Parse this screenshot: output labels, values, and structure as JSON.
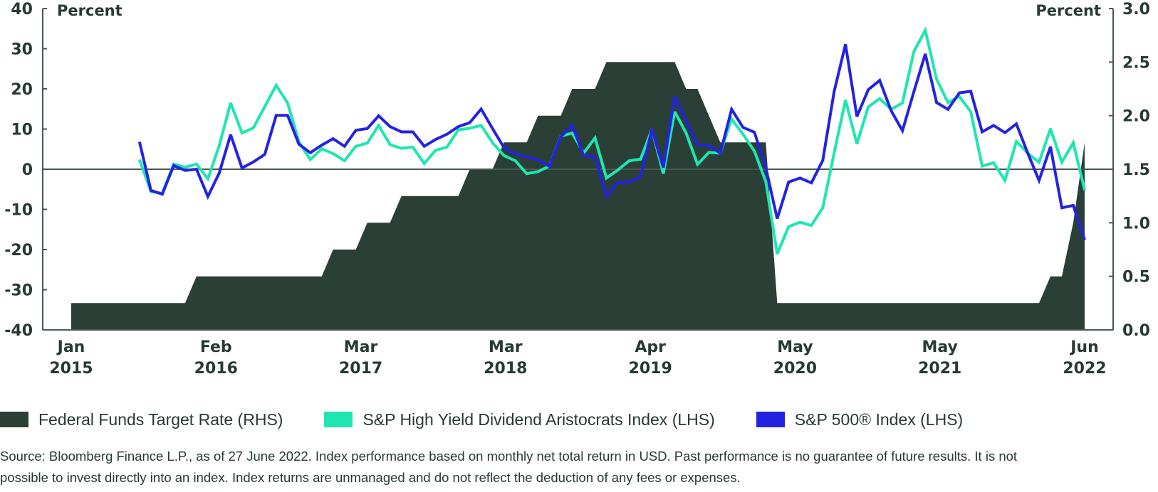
{
  "chart_data": {
    "type": "line",
    "title": "",
    "left_axis": {
      "label": "Percent",
      "ticks": [
        "40",
        "30",
        "20",
        "10",
        "0",
        "-10",
        "-20",
        "-30",
        "-40"
      ],
      "range": [
        -40,
        40
      ]
    },
    "right_axis": {
      "label": "Percent",
      "ticks": [
        "3.0",
        "2.5",
        "2.0",
        "1.5",
        "1.0",
        "0.5",
        "0.0"
      ],
      "range": [
        0,
        3
      ]
    },
    "x_range": {
      "start": "Jan 2015",
      "end": "Jun 2022",
      "frequency": "monthly",
      "months": 90
    },
    "x_tick_labels": [
      {
        "month": "Jan",
        "year": "2015"
      },
      {
        "month": "Feb",
        "year": "2016"
      },
      {
        "month": "Mar",
        "year": "2017"
      },
      {
        "month": "Mar",
        "year": "2018"
      },
      {
        "month": "Apr",
        "year": "2019"
      },
      {
        "month": "May",
        "year": "2020"
      },
      {
        "month": "May",
        "year": "2021"
      },
      {
        "month": "Jun",
        "year": "2022"
      }
    ],
    "grid": false,
    "legend_position": "bottom",
    "series": [
      {
        "name": "Federal Funds Target Rate (RHS)",
        "type": "area",
        "axis": "right",
        "color": "#2a3f35",
        "start_month_index": 0,
        "values": [
          0.25,
          0.25,
          0.25,
          0.25,
          0.25,
          0.25,
          0.25,
          0.25,
          0.25,
          0.25,
          0.25,
          0.5,
          0.5,
          0.5,
          0.5,
          0.5,
          0.5,
          0.5,
          0.5,
          0.5,
          0.5,
          0.5,
          0.5,
          0.75,
          0.75,
          0.75,
          1.0,
          1.0,
          1.0,
          1.25,
          1.25,
          1.25,
          1.25,
          1.25,
          1.25,
          1.5,
          1.5,
          1.5,
          1.75,
          1.75,
          1.75,
          2.0,
          2.0,
          2.0,
          2.25,
          2.25,
          2.25,
          2.5,
          2.5,
          2.5,
          2.5,
          2.5,
          2.5,
          2.5,
          2.25,
          2.25,
          2.0,
          1.75,
          1.75,
          1.75,
          1.75,
          1.75,
          0.25,
          0.25,
          0.25,
          0.25,
          0.25,
          0.25,
          0.25,
          0.25,
          0.25,
          0.25,
          0.25,
          0.25,
          0.25,
          0.25,
          0.25,
          0.25,
          0.25,
          0.25,
          0.25,
          0.25,
          0.25,
          0.25,
          0.25,
          0.25,
          0.5,
          0.5,
          1.0,
          1.75
        ]
      },
      {
        "name": "S&P High Yield Dividend Aristocrats Index (LHS)",
        "type": "line",
        "axis": "left",
        "color": "#1ee6b1",
        "start_month_index": 6,
        "values": [
          2.4,
          -5.6,
          -6.0,
          1.3,
          0.5,
          1.3,
          -2.4,
          5.9,
          16.5,
          9.0,
          10.3,
          15.6,
          20.9,
          16.5,
          6.8,
          2.4,
          5.1,
          3.9,
          2.1,
          5.7,
          6.5,
          10.9,
          6.1,
          5.2,
          5.5,
          1.4,
          4.7,
          5.5,
          9.8,
          10.2,
          10.9,
          6.6,
          3.4,
          2.1,
          -1.1,
          -0.6,
          0.8,
          8.2,
          9.0,
          4.0,
          7.8,
          -2.2,
          -0.2,
          2.1,
          2.5,
          9.9,
          -1.1,
          14.3,
          9.0,
          1.2,
          4.2,
          4.0,
          12.5,
          8.7,
          4.5,
          -3.1,
          -21.1,
          -14.3,
          -13.2,
          -14.0,
          -9.6,
          4.0,
          17.2,
          6.3,
          15.5,
          17.6,
          14.9,
          16.5,
          29.3,
          34.6,
          22.4,
          16.6,
          18.1,
          14.3,
          0.8,
          1.6,
          -2.8,
          6.9,
          4.0,
          1.7,
          10.1,
          1.7,
          6.6,
          -5.2
        ]
      },
      {
        "name": "S&P 500® Index (LHS)",
        "type": "line",
        "axis": "left",
        "color": "#2323e0",
        "start_month_index": 6,
        "values": [
          6.8,
          -5.3,
          -6.2,
          0.9,
          -0.3,
          0.0,
          -6.8,
          -0.9,
          8.6,
          0.3,
          1.8,
          3.7,
          13.4,
          13.4,
          6.2,
          4.1,
          6.0,
          7.6,
          5.7,
          9.7,
          10.1,
          13.3,
          10.6,
          9.3,
          9.3,
          5.7,
          7.4,
          8.7,
          10.6,
          11.6,
          15.0,
          10.1,
          5.4,
          3.8,
          3.1,
          2.3,
          0.7,
          8.1,
          10.9,
          3.4,
          3.1,
          -6.7,
          -3.4,
          -3.2,
          -1.9,
          9.9,
          0.4,
          18.1,
          12.0,
          6.1,
          5.9,
          4.0,
          14.9,
          10.4,
          9.2,
          0.4,
          -12.3,
          -3.2,
          -2.2,
          -3.4,
          2.2,
          19.3,
          31.1,
          13.1,
          19.8,
          22.1,
          14.6,
          9.6,
          19.3,
          28.7,
          16.6,
          14.9,
          19.0,
          19.4,
          9.3,
          10.9,
          9.1,
          11.3,
          4.0,
          -2.8,
          5.6,
          -9.6,
          -9.0,
          -17.6
        ]
      }
    ]
  },
  "legend": [
    {
      "label": "Federal Funds Target Rate (RHS)",
      "color": "#2a3f35"
    },
    {
      "label": "S&P High Yield Dividend Aristocrats Index (LHS)",
      "color": "#1ee6b1"
    },
    {
      "label": "S&P 500® Index (LHS)",
      "color": "#2323e0"
    }
  ],
  "source": {
    "line1": "Source: Bloomberg Finance L.P., as of 27 June 2022. Index performance based on monthly net total return in USD. Past performance is no guarantee of future results. It is not",
    "line2": "possible to invest directly into an index. Index returns are unmanaged and do not reflect the deduction of any fees or expenses."
  }
}
